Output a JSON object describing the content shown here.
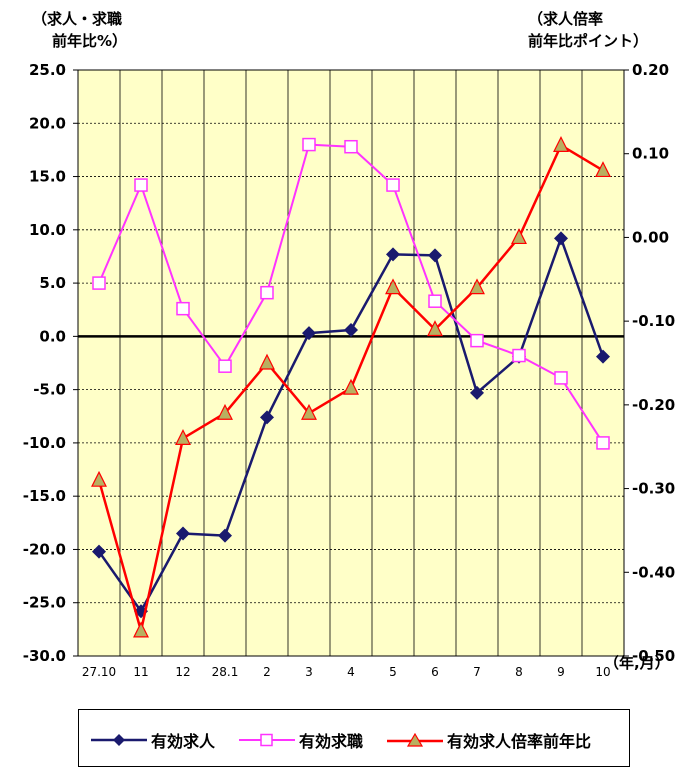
{
  "labels": {
    "left_title_1": "（求人・求職",
    "left_title_2": "前年比%）",
    "right_title_1": "（求人倍率",
    "right_title_2": "前年比ポイント）",
    "x_unit": "（年,月）"
  },
  "chart_data": {
    "type": "line",
    "categories": [
      "27.10",
      "11",
      "12",
      "28.1",
      "2",
      "3",
      "4",
      "5",
      "6",
      "7",
      "8",
      "9",
      "10"
    ],
    "y_left": {
      "range": [
        -30.0,
        25.0
      ],
      "ticks": [
        "25.0",
        "20.0",
        "15.0",
        "10.0",
        "5.0",
        "0.0",
        "-5.0",
        "-10.0",
        "-15.0",
        "-20.0",
        "-25.0",
        "-30.0"
      ]
    },
    "y_right": {
      "range": [
        -0.5,
        0.2
      ],
      "ticks": [
        "0.20",
        "0.10",
        "0.00",
        "-0.10",
        "-0.20",
        "-0.30",
        "-0.40",
        "-0.50"
      ]
    },
    "grid": true,
    "legend_position": "bottom",
    "series": [
      {
        "name": "有効求人",
        "axis": "left",
        "color": "#1a1a6e",
        "marker": "diamond",
        "values": [
          -20.2,
          -25.8,
          -18.5,
          -18.7,
          -7.6,
          0.3,
          0.6,
          7.7,
          7.6,
          -5.3,
          -1.9,
          9.2,
          -1.9
        ]
      },
      {
        "name": "有効求職",
        "axis": "left",
        "color": "#ff33ff",
        "marker": "square",
        "values": [
          5.0,
          14.2,
          2.6,
          -2.8,
          4.1,
          18.0,
          17.8,
          14.2,
          3.3,
          -0.4,
          -1.8,
          -3.9,
          -10.0
        ]
      },
      {
        "name": "有効求人倍率前年比",
        "axis": "right",
        "color": "#ff0000",
        "marker": "triangle",
        "values": [
          -0.29,
          -0.47,
          -0.24,
          -0.21,
          -0.15,
          -0.21,
          -0.18,
          -0.06,
          -0.11,
          -0.06,
          0.0,
          0.11,
          0.08
        ]
      }
    ]
  }
}
